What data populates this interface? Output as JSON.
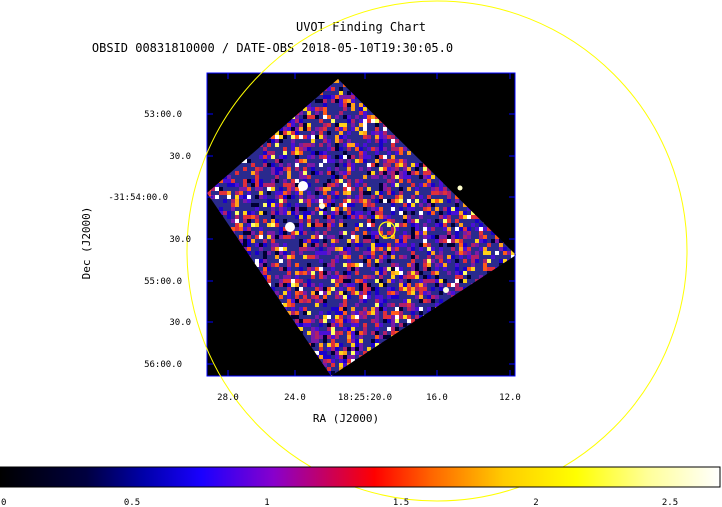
{
  "header": {
    "title": "UVOT Finding Chart",
    "subtitle": "OBSID 00831810000 / DATE-OBS 2018-05-10T19:30:05.0"
  },
  "axes": {
    "xlabel": "RA (J2000)",
    "ylabel": "Dec (J2000)",
    "xticks": [
      "28.0",
      "24.0",
      "18:25:20.0",
      "16.0",
      "12.0"
    ],
    "yticks": [
      "53:00.0",
      "30.0",
      "-31:54:00.0",
      "30.0",
      "55:00.0",
      "30.0",
      "56:00.0"
    ]
  },
  "colorbar": {
    "ticks": [
      "0",
      "0.5",
      "1",
      "1.5",
      "2",
      "2.5"
    ],
    "min": 0,
    "max": 2.7
  },
  "colors": {
    "frame": "#0000ff",
    "field_circle": "#ffff00",
    "target_circle": "#ffff00",
    "background": "#000000"
  }
}
